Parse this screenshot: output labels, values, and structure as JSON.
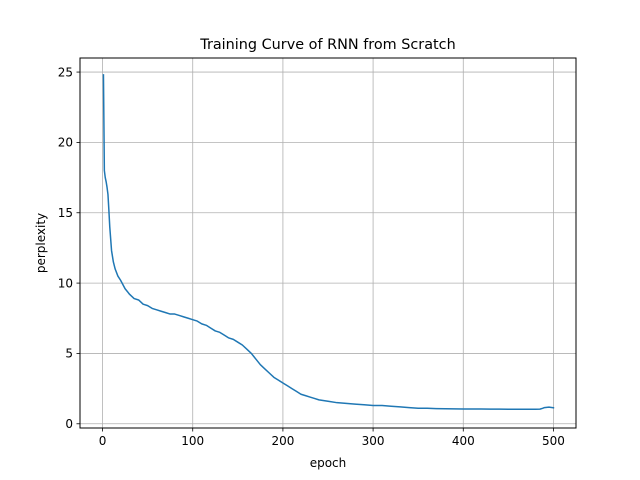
{
  "chart_data": {
    "type": "line",
    "title": "Training Curve of RNN from Scratch",
    "xlabel": "epoch",
    "ylabel": "perplexity",
    "xlim": [
      -25,
      525
    ],
    "ylim": [
      -0.3,
      26.0
    ],
    "xticks": [
      0,
      100,
      200,
      300,
      400,
      500
    ],
    "yticks": [
      0,
      5,
      10,
      15,
      20,
      25
    ],
    "grid": true,
    "legend": "none",
    "series": [
      {
        "color": "#1f77b4",
        "x": [
          1,
          2,
          3,
          4,
          5,
          6,
          7,
          8,
          10,
          12,
          14,
          17,
          20,
          25,
          30,
          35,
          40,
          45,
          50,
          55,
          60,
          65,
          70,
          75,
          80,
          85,
          90,
          95,
          100,
          105,
          110,
          115,
          120,
          125,
          130,
          135,
          140,
          145,
          150,
          155,
          160,
          165,
          170,
          175,
          180,
          185,
          190,
          195,
          200,
          205,
          210,
          215,
          220,
          225,
          230,
          235,
          240,
          250,
          260,
          270,
          280,
          290,
          300,
          310,
          320,
          330,
          340,
          350,
          360,
          370,
          380,
          390,
          400,
          410,
          420,
          430,
          440,
          450,
          460,
          470,
          480,
          485,
          488,
          490,
          495,
          500
        ],
        "values": [
          24.8,
          18.0,
          17.5,
          17.2,
          16.8,
          16.3,
          15.2,
          14.0,
          12.3,
          11.5,
          11.0,
          10.5,
          10.2,
          9.6,
          9.2,
          8.9,
          8.8,
          8.5,
          8.4,
          8.2,
          8.1,
          8.0,
          7.9,
          7.8,
          7.8,
          7.7,
          7.6,
          7.5,
          7.4,
          7.3,
          7.1,
          7.0,
          6.8,
          6.6,
          6.5,
          6.3,
          6.1,
          6.0,
          5.8,
          5.6,
          5.3,
          5.0,
          4.6,
          4.2,
          3.9,
          3.6,
          3.3,
          3.1,
          2.9,
          2.7,
          2.5,
          2.3,
          2.1,
          2.0,
          1.9,
          1.8,
          1.7,
          1.6,
          1.5,
          1.45,
          1.4,
          1.35,
          1.3,
          1.3,
          1.25,
          1.2,
          1.15,
          1.1,
          1.1,
          1.08,
          1.07,
          1.06,
          1.05,
          1.05,
          1.05,
          1.04,
          1.04,
          1.03,
          1.03,
          1.03,
          1.03,
          1.04,
          1.1,
          1.15,
          1.18,
          1.14
        ]
      }
    ]
  }
}
